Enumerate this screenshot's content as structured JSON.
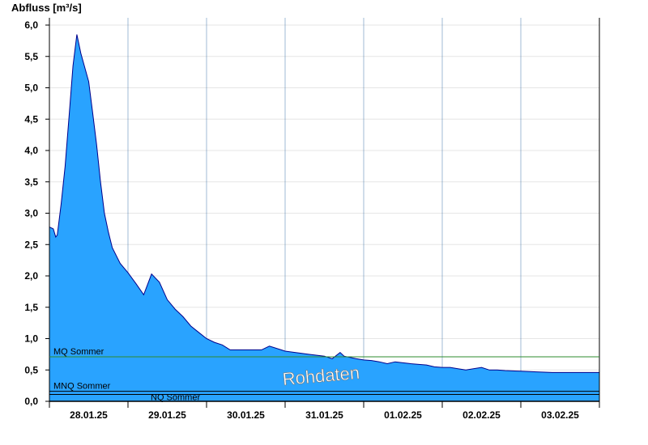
{
  "chart_data": {
    "type": "area",
    "ylabel": "Abfluss [m³/s]",
    "ylim": [
      0,
      6.2
    ],
    "yticks": [
      "0,0",
      "0,5",
      "1,0",
      "1,5",
      "2,0",
      "2,5",
      "3,0",
      "3,5",
      "4,0",
      "4,5",
      "5,0",
      "5,5",
      "6,0"
    ],
    "xlim": [
      0,
      7
    ],
    "xticks": [
      "28.01.25",
      "29.01.25",
      "30.01.25",
      "31.01.25",
      "01.02.25",
      "02.02.25",
      "03.02.25"
    ],
    "grid": true,
    "watermark": "Rohdaten",
    "fill_color": "#29a3ff",
    "line_color": "#00008b",
    "series": [
      {
        "x": [
          0,
          0.05,
          0.08,
          0.1,
          0.15,
          0.2,
          0.25,
          0.3,
          0.35,
          0.4,
          0.5,
          0.55,
          0.6,
          0.65,
          0.7,
          0.75,
          0.8,
          0.9,
          1.0,
          1.1,
          1.2,
          1.3,
          1.4,
          1.5,
          1.6,
          1.7,
          1.8,
          1.9,
          2.0,
          2.1,
          2.2,
          2.3,
          2.4,
          2.5,
          2.6,
          2.7,
          2.8,
          2.95,
          3.0,
          3.3,
          3.5,
          3.6,
          3.7,
          3.75,
          3.9,
          4.0,
          4.1,
          4.2,
          4.3,
          4.4,
          4.6,
          4.8,
          4.9,
          5.0,
          5.1,
          5.2,
          5.3,
          5.5,
          5.6,
          5.7,
          5.8,
          6.0,
          6.2,
          6.4,
          6.6,
          7.0
        ],
        "values": [
          2.78,
          2.75,
          2.62,
          2.65,
          3.15,
          3.75,
          4.55,
          5.35,
          5.85,
          5.55,
          5.1,
          4.6,
          4.1,
          3.5,
          3.0,
          2.7,
          2.45,
          2.2,
          2.05,
          1.88,
          1.7,
          2.03,
          1.9,
          1.62,
          1.47,
          1.35,
          1.2,
          1.1,
          1.0,
          0.94,
          0.9,
          0.82,
          0.82,
          0.82,
          0.82,
          0.82,
          0.88,
          0.82,
          0.8,
          0.75,
          0.72,
          0.68,
          0.78,
          0.72,
          0.68,
          0.66,
          0.65,
          0.63,
          0.6,
          0.63,
          0.6,
          0.58,
          0.55,
          0.54,
          0.54,
          0.52,
          0.5,
          0.54,
          0.5,
          0.5,
          0.49,
          0.48,
          0.47,
          0.46,
          0.46,
          0.46
        ]
      }
    ],
    "reference_lines": [
      {
        "label": "MQ Sommer",
        "value": 0.71,
        "color": "#2e8b2e"
      },
      {
        "label": "MNQ Sommer",
        "value": 0.16,
        "color": "#000000"
      },
      {
        "label": "NQ Sommer",
        "value": 0.11,
        "color": "#000000"
      }
    ]
  }
}
